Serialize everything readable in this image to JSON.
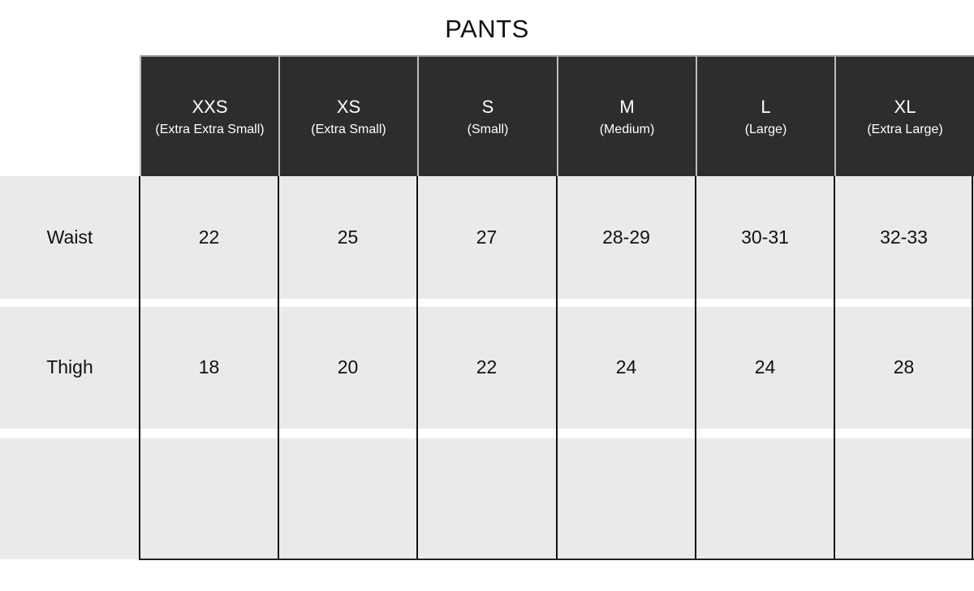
{
  "title": "PANTS",
  "sizes": [
    {
      "code": "XXS",
      "name": "(Extra Extra Small)"
    },
    {
      "code": "XS",
      "name": "(Extra Small)"
    },
    {
      "code": "S",
      "name": "(Small)"
    },
    {
      "code": "M",
      "name": "(Medium)"
    },
    {
      "code": "L",
      "name": "(Large)"
    },
    {
      "code": "XL",
      "name": "(Extra Large)"
    }
  ],
  "rows": [
    {
      "label": "Waist",
      "values": [
        "22",
        "25",
        "27",
        "28-29",
        "30-31",
        "32-33"
      ]
    },
    {
      "label": "Thigh",
      "values": [
        "18",
        "20",
        "22",
        "24",
        "24",
        "28"
      ]
    },
    {
      "label": "",
      "values": [
        "",
        "",
        "",
        "",
        "",
        ""
      ]
    }
  ],
  "colors": {
    "header_bg": "#2d2d2d",
    "row_bg": "#eaeaea",
    "grid": "#111111"
  }
}
